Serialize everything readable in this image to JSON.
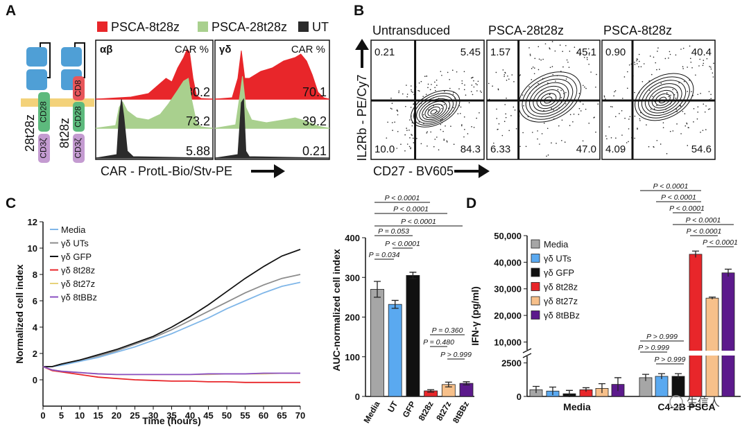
{
  "panel_a": {
    "letter": "A",
    "legend": [
      {
        "name": "PSCA-8t28z",
        "color": "#e8262a"
      },
      {
        "name": "PSCA-28t28z",
        "color": "#a9d08e"
      },
      {
        "name": "UT",
        "color": "#2b2b2b"
      }
    ],
    "constructs": [
      {
        "name": "28t28z",
        "domains": [
          {
            "name": "CD28",
            "color": "#5dba7d"
          },
          {
            "name": "CD3ζ",
            "color": "#c49bd1"
          }
        ]
      },
      {
        "name": "8t28z",
        "domains": [
          {
            "name": "CD8",
            "color": "#e8565a"
          },
          {
            "name": "CD28",
            "color": "#5dba7d"
          },
          {
            "name": "CD3ζ",
            "color": "#c49bd1"
          }
        ]
      }
    ],
    "histograms": [
      {
        "label": "αβ",
        "header": "CAR %",
        "values": [
          "80.2",
          "73.2",
          "5.88"
        ]
      },
      {
        "label": "γδ",
        "header": "CAR %",
        "values": [
          "70.1",
          "39.2",
          "0.21"
        ]
      }
    ],
    "x_label": "CAR - ProtL-Bio/Stv-PE"
  },
  "panel_b": {
    "letter": "B",
    "plots": [
      {
        "title": "Untransduced",
        "quadrants": [
          "0.21",
          "5.45",
          "10.0",
          "84.3"
        ]
      },
      {
        "title": "PSCA-28t28z",
        "quadrants": [
          "1.57",
          "45.1",
          "6.33",
          "47.0"
        ]
      },
      {
        "title": "PSCA-8t28z",
        "quadrants": [
          "0.90",
          "40.4",
          "4.09",
          "54.6"
        ]
      }
    ],
    "y_label": "IL2Rb - PE/Cy7",
    "x_label": "CD27 - BV605"
  },
  "panel_c": {
    "letter": "C",
    "line_chart": {
      "type": "line",
      "x_label": "Time (hours)",
      "y_label": "Normalized cell index",
      "x": [
        0,
        2.5,
        5,
        10,
        15,
        20,
        25,
        30,
        35,
        40,
        45,
        50,
        55,
        60,
        65,
        70
      ],
      "xlim": [
        0,
        70
      ],
      "xticks": [
        0,
        5,
        10,
        15,
        20,
        25,
        30,
        35,
        40,
        45,
        50,
        55,
        60,
        65,
        70
      ],
      "ylim": [
        -2,
        12
      ],
      "yticks": [
        0,
        2,
        4,
        6,
        8,
        10,
        12
      ],
      "series": [
        {
          "name": "Media",
          "color": "#7fb6e8",
          "values": [
            1.0,
            1.0,
            1.1,
            1.4,
            1.7,
            2.1,
            2.5,
            3.0,
            3.5,
            4.1,
            4.7,
            5.4,
            6.0,
            6.6,
            7.1,
            7.4
          ]
        },
        {
          "name": "γδ UTs",
          "color": "#8c8c8c",
          "values": [
            1.0,
            1.0,
            1.2,
            1.5,
            1.8,
            2.2,
            2.7,
            3.2,
            3.8,
            4.5,
            5.2,
            5.9,
            6.6,
            7.2,
            7.7,
            8.0
          ]
        },
        {
          "name": "γδ GFP",
          "color": "#111111",
          "values": [
            1.0,
            1.0,
            1.2,
            1.5,
            1.9,
            2.3,
            2.8,
            3.3,
            4.0,
            4.8,
            5.7,
            6.7,
            7.7,
            8.6,
            9.4,
            9.9
          ]
        },
        {
          "name": "γδ 8t28z",
          "color": "#e8262a",
          "values": [
            1.0,
            0.7,
            0.6,
            0.4,
            0.2,
            0.1,
            0.0,
            -0.05,
            -0.1,
            -0.1,
            -0.15,
            -0.15,
            -0.2,
            -0.2,
            -0.2,
            -0.2
          ]
        },
        {
          "name": "γδ 8t27z",
          "color": "#e6d27a",
          "values": [
            1.0,
            0.75,
            0.65,
            0.55,
            0.45,
            0.4,
            0.4,
            0.4,
            0.4,
            0.4,
            0.4,
            0.45,
            0.45,
            0.45,
            0.5,
            0.5
          ]
        },
        {
          "name": "γδ 8tBBz",
          "color": "#8a4fc2",
          "values": [
            1.0,
            0.75,
            0.65,
            0.55,
            0.45,
            0.4,
            0.4,
            0.4,
            0.4,
            0.4,
            0.45,
            0.45,
            0.45,
            0.5,
            0.5,
            0.5
          ]
        }
      ]
    },
    "bar_chart": {
      "type": "bar",
      "y_label": "AUC-normalized cell index",
      "categories": [
        "Media",
        "UT",
        "GFP",
        "8t28z",
        "8t27z",
        "8tBBz"
      ],
      "values": [
        270,
        232,
        305,
        14,
        30,
        33
      ],
      "errors": [
        20,
        10,
        8,
        3,
        6,
        4
      ],
      "colors": [
        "#a6a6a6",
        "#5aa9f0",
        "#111111",
        "#e8262a",
        "#f7c08a",
        "#5c1a8c"
      ],
      "ylim": [
        0,
        400
      ],
      "yticks": [
        0,
        100,
        200,
        300,
        400
      ],
      "annotations": [
        "P < 0.0001",
        "P < 0.0001",
        "P < 0.0001",
        "P = 0.053",
        "P < 0.0001",
        "P = 0.034",
        "P = 0.360",
        "P = 0.480",
        "P > 0.999"
      ]
    }
  },
  "panel_d": {
    "letter": "D",
    "type": "bar",
    "y_label": "IFN-γ (pg/ml)",
    "categories": [
      "Media",
      "C4-2B PSCA"
    ],
    "ylim_lower": [
      0,
      3000
    ],
    "ylim_upper": [
      7000,
      50000
    ],
    "yticks": [
      0,
      2500,
      {
        "value": 10000,
        "label": "10,000"
      },
      {
        "value": 20000,
        "label": "20,000"
      },
      {
        "value": 30000,
        "label": "30,000"
      },
      {
        "value": 40000,
        "label": "40,000"
      },
      {
        "value": 50000,
        "label": "50,000"
      }
    ],
    "series": [
      {
        "name": "Media",
        "color": "#a6a6a6",
        "values": [
          500,
          1400
        ],
        "errors": [
          250,
          250
        ]
      },
      {
        "name": "γδ UTs",
        "color": "#5aa9f0",
        "values": [
          400,
          1500
        ],
        "errors": [
          300,
          200
        ]
      },
      {
        "name": "γδ GFP",
        "color": "#111111",
        "values": [
          200,
          1500
        ],
        "errors": [
          250,
          200
        ]
      },
      {
        "name": "γδ 8t28z",
        "color": "#e8262a",
        "values": [
          500,
          43000
        ],
        "errors": [
          150,
          1200
        ]
      },
      {
        "name": "γδ 8t27z",
        "color": "#f7c08a",
        "values": [
          600,
          26500
        ],
        "errors": [
          350,
          400
        ]
      },
      {
        "name": "γδ 8tBBz",
        "color": "#5c1a8c",
        "values": [
          900,
          36000
        ],
        "errors": [
          500,
          1400
        ]
      }
    ],
    "annotations": [
      "P < 0.0001",
      "P < 0.0001",
      "P < 0.0001",
      "P < 0.0001",
      "P < 0.0001",
      "P < 0.0001",
      "P > 0.999",
      "P > 0.999",
      "P > 0.999"
    ]
  },
  "watermark": "生信人"
}
